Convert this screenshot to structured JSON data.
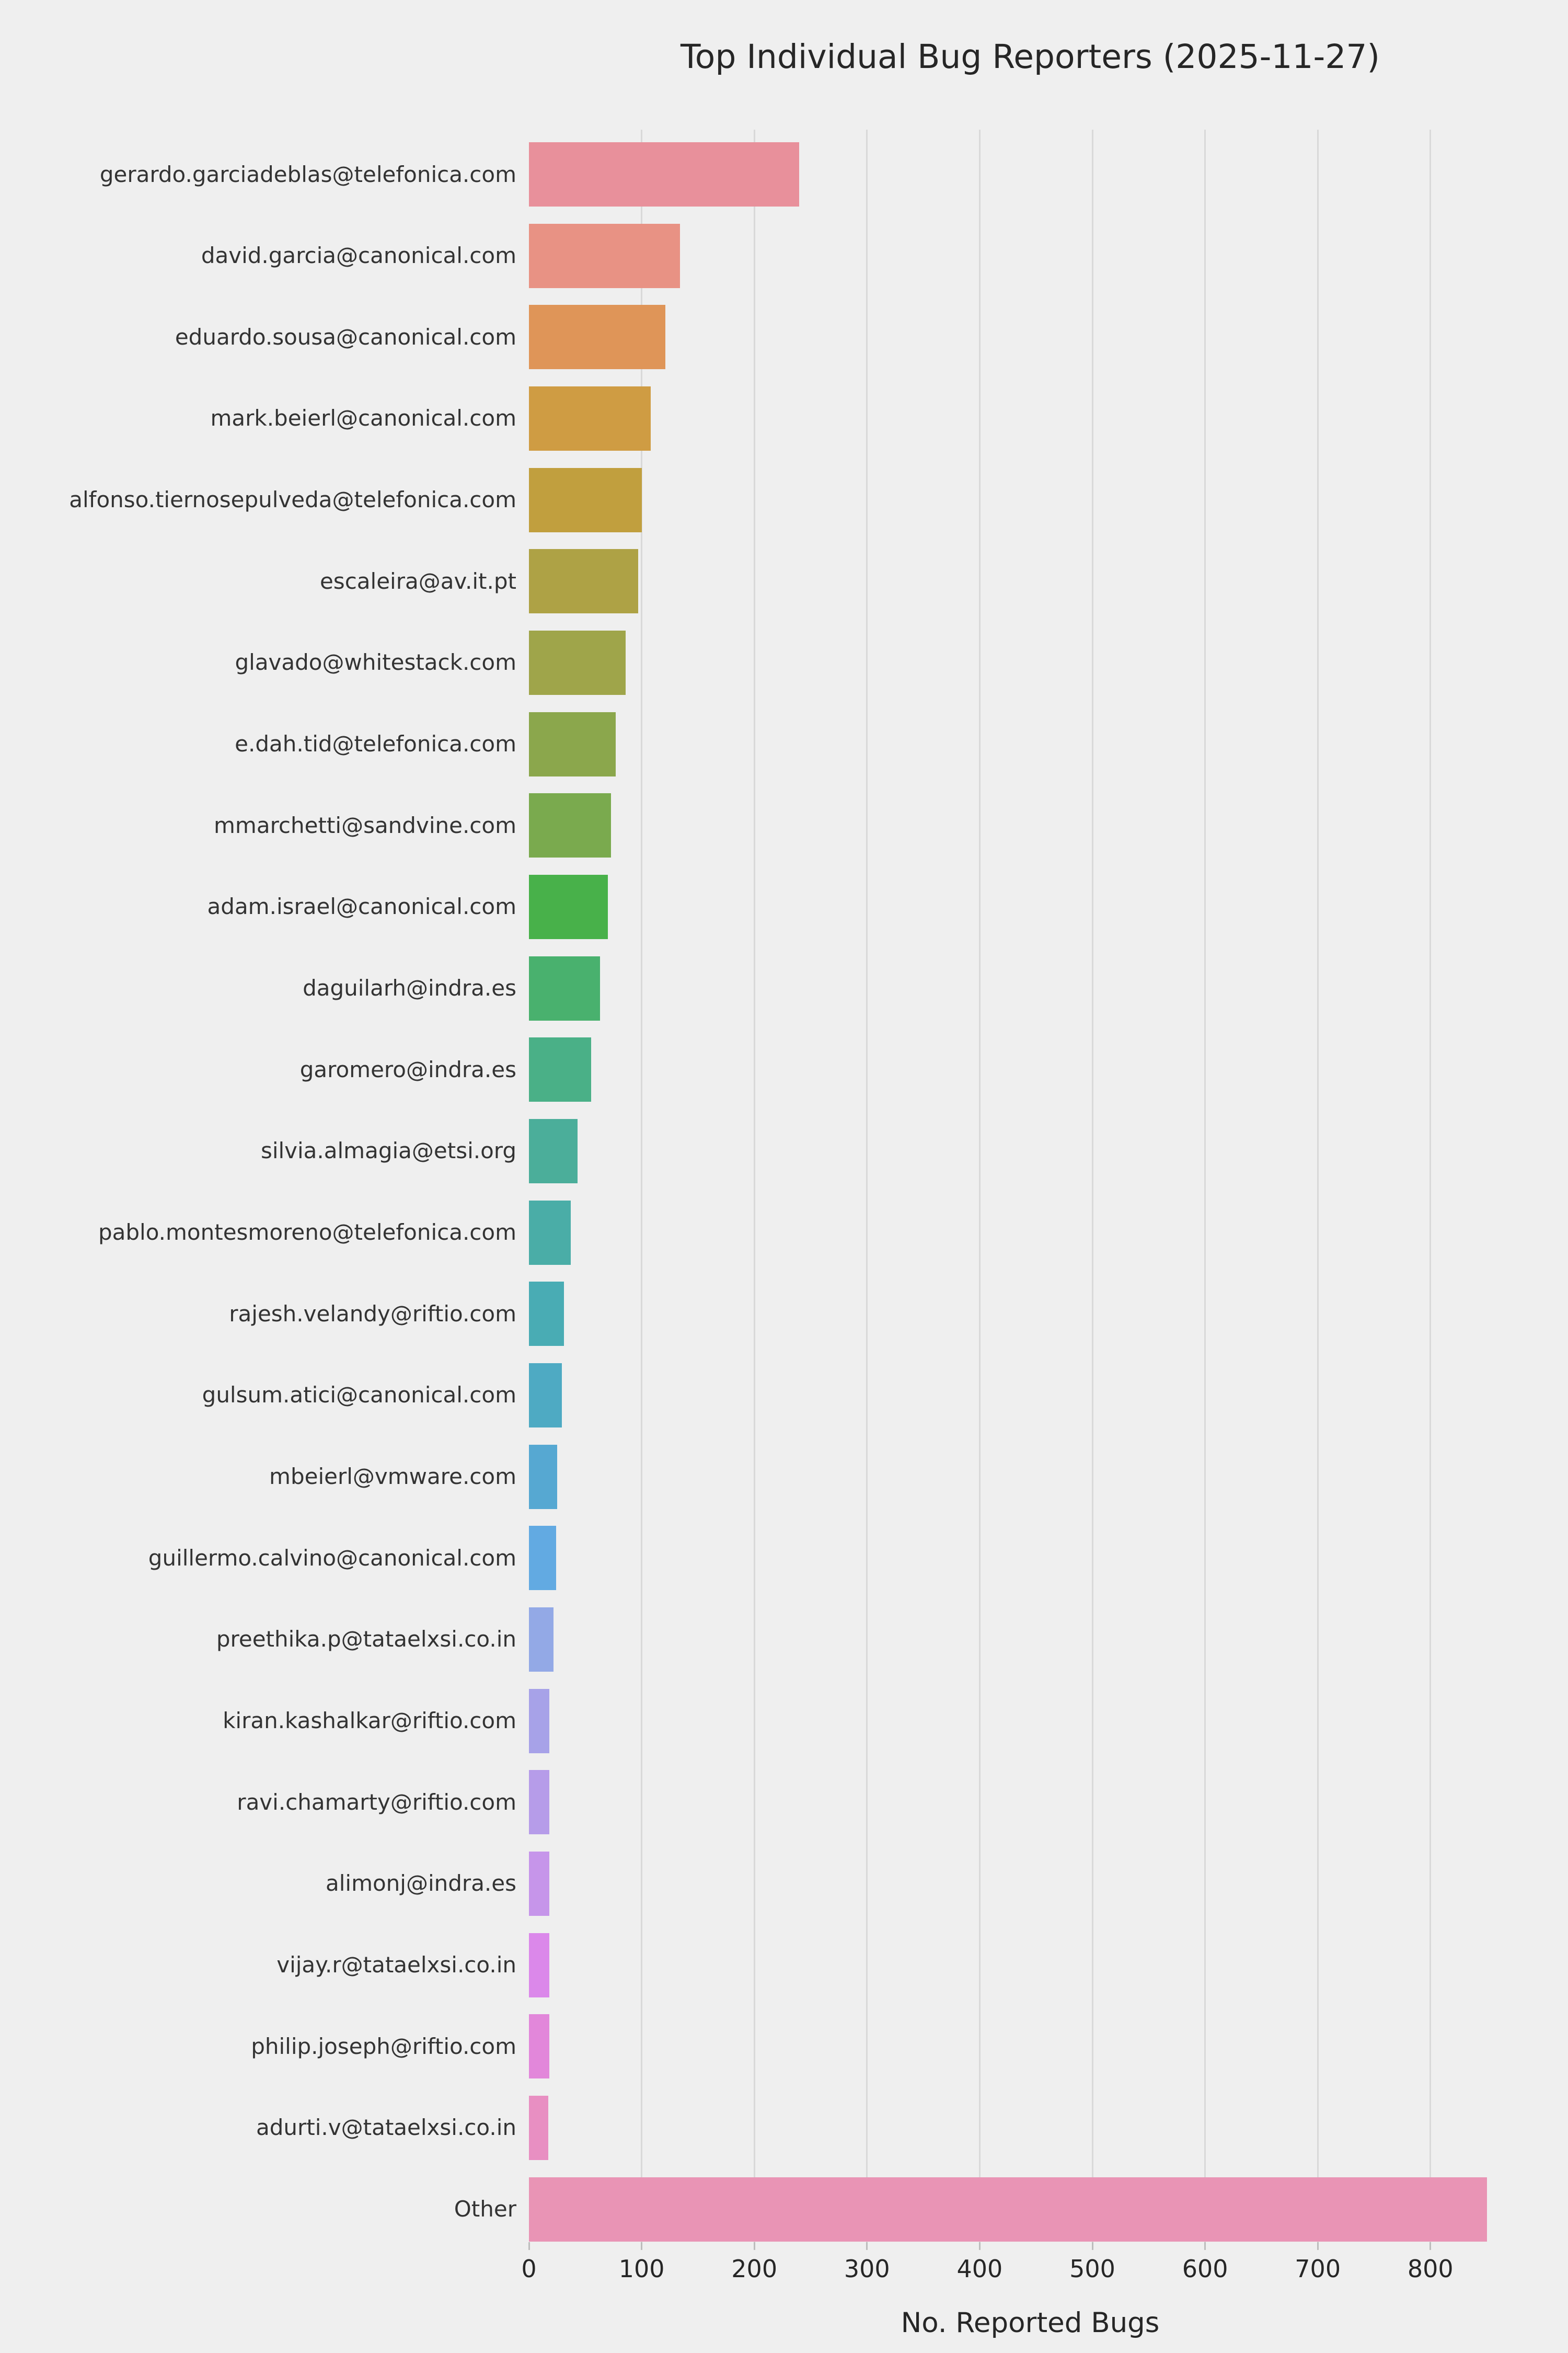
{
  "chart": {
    "background_color": "#efefef",
    "gridline_color": "#d9d9d9",
    "tick_color": "#bdbdbd",
    "title_color": "#262626",
    "label_color": "#333333"
  },
  "chart_data": {
    "type": "bar",
    "orientation": "horizontal",
    "title": "Top Individual Bug Reporters (2025-11-27)",
    "xlabel": "No. Reported Bugs",
    "ylabel": "",
    "grid": true,
    "legend": false,
    "xlim": [
      0,
      880
    ],
    "xticks": [
      0,
      100,
      200,
      300,
      400,
      500,
      600,
      700,
      800
    ],
    "categories": [
      "gerardo.garciadeblas@telefonica.com",
      "david.garcia@canonical.com",
      "eduardo.sousa@canonical.com",
      "mark.beierl@canonical.com",
      "alfonso.tiernosepulveda@telefonica.com",
      "escaleira@av.it.pt",
      "glavado@whitestack.com",
      "e.dah.tid@telefonica.com",
      "mmarchetti@sandvine.com",
      "adam.israel@canonical.com",
      "daguilarh@indra.es",
      "garomero@indra.es",
      "silvia.almagia@etsi.org",
      "pablo.montesmoreno@telefonica.com",
      "rajesh.velandy@riftio.com",
      "gulsum.atici@canonical.com",
      "mbeierl@vmware.com",
      "guillermo.calvino@canonical.com",
      "preethika.p@tataelxsi.co.in",
      "kiran.kashalkar@riftio.com",
      "ravi.chamarty@riftio.com",
      "alimonj@indra.es",
      "vijay.r@tataelxsi.co.in",
      "philip.joseph@riftio.com",
      "adurti.v@tataelxsi.co.in",
      "Other"
    ],
    "values": [
      240,
      134,
      121,
      108,
      100,
      97,
      86,
      77,
      73,
      70,
      63,
      55,
      43,
      37,
      31,
      29,
      25,
      24,
      22,
      18,
      18,
      18,
      18,
      18,
      17,
      850
    ],
    "colors": [
      "#e8909b",
      "#e89284",
      "#df9558",
      "#cf9c43",
      "#c19f3e",
      "#aea245",
      "#9fa54a",
      "#8ba74c",
      "#7aaa4e",
      "#48b14a",
      "#49b16e",
      "#4ab087",
      "#4bae9a",
      "#4aada7",
      "#49acb4",
      "#4eaac3",
      "#56a8d2",
      "#62aae2",
      "#93a9e6",
      "#a7a2e8",
      "#b69ce9",
      "#c695ea",
      "#db88ea",
      "#e287da",
      "#e88fc2",
      "#e994b5"
    ]
  }
}
